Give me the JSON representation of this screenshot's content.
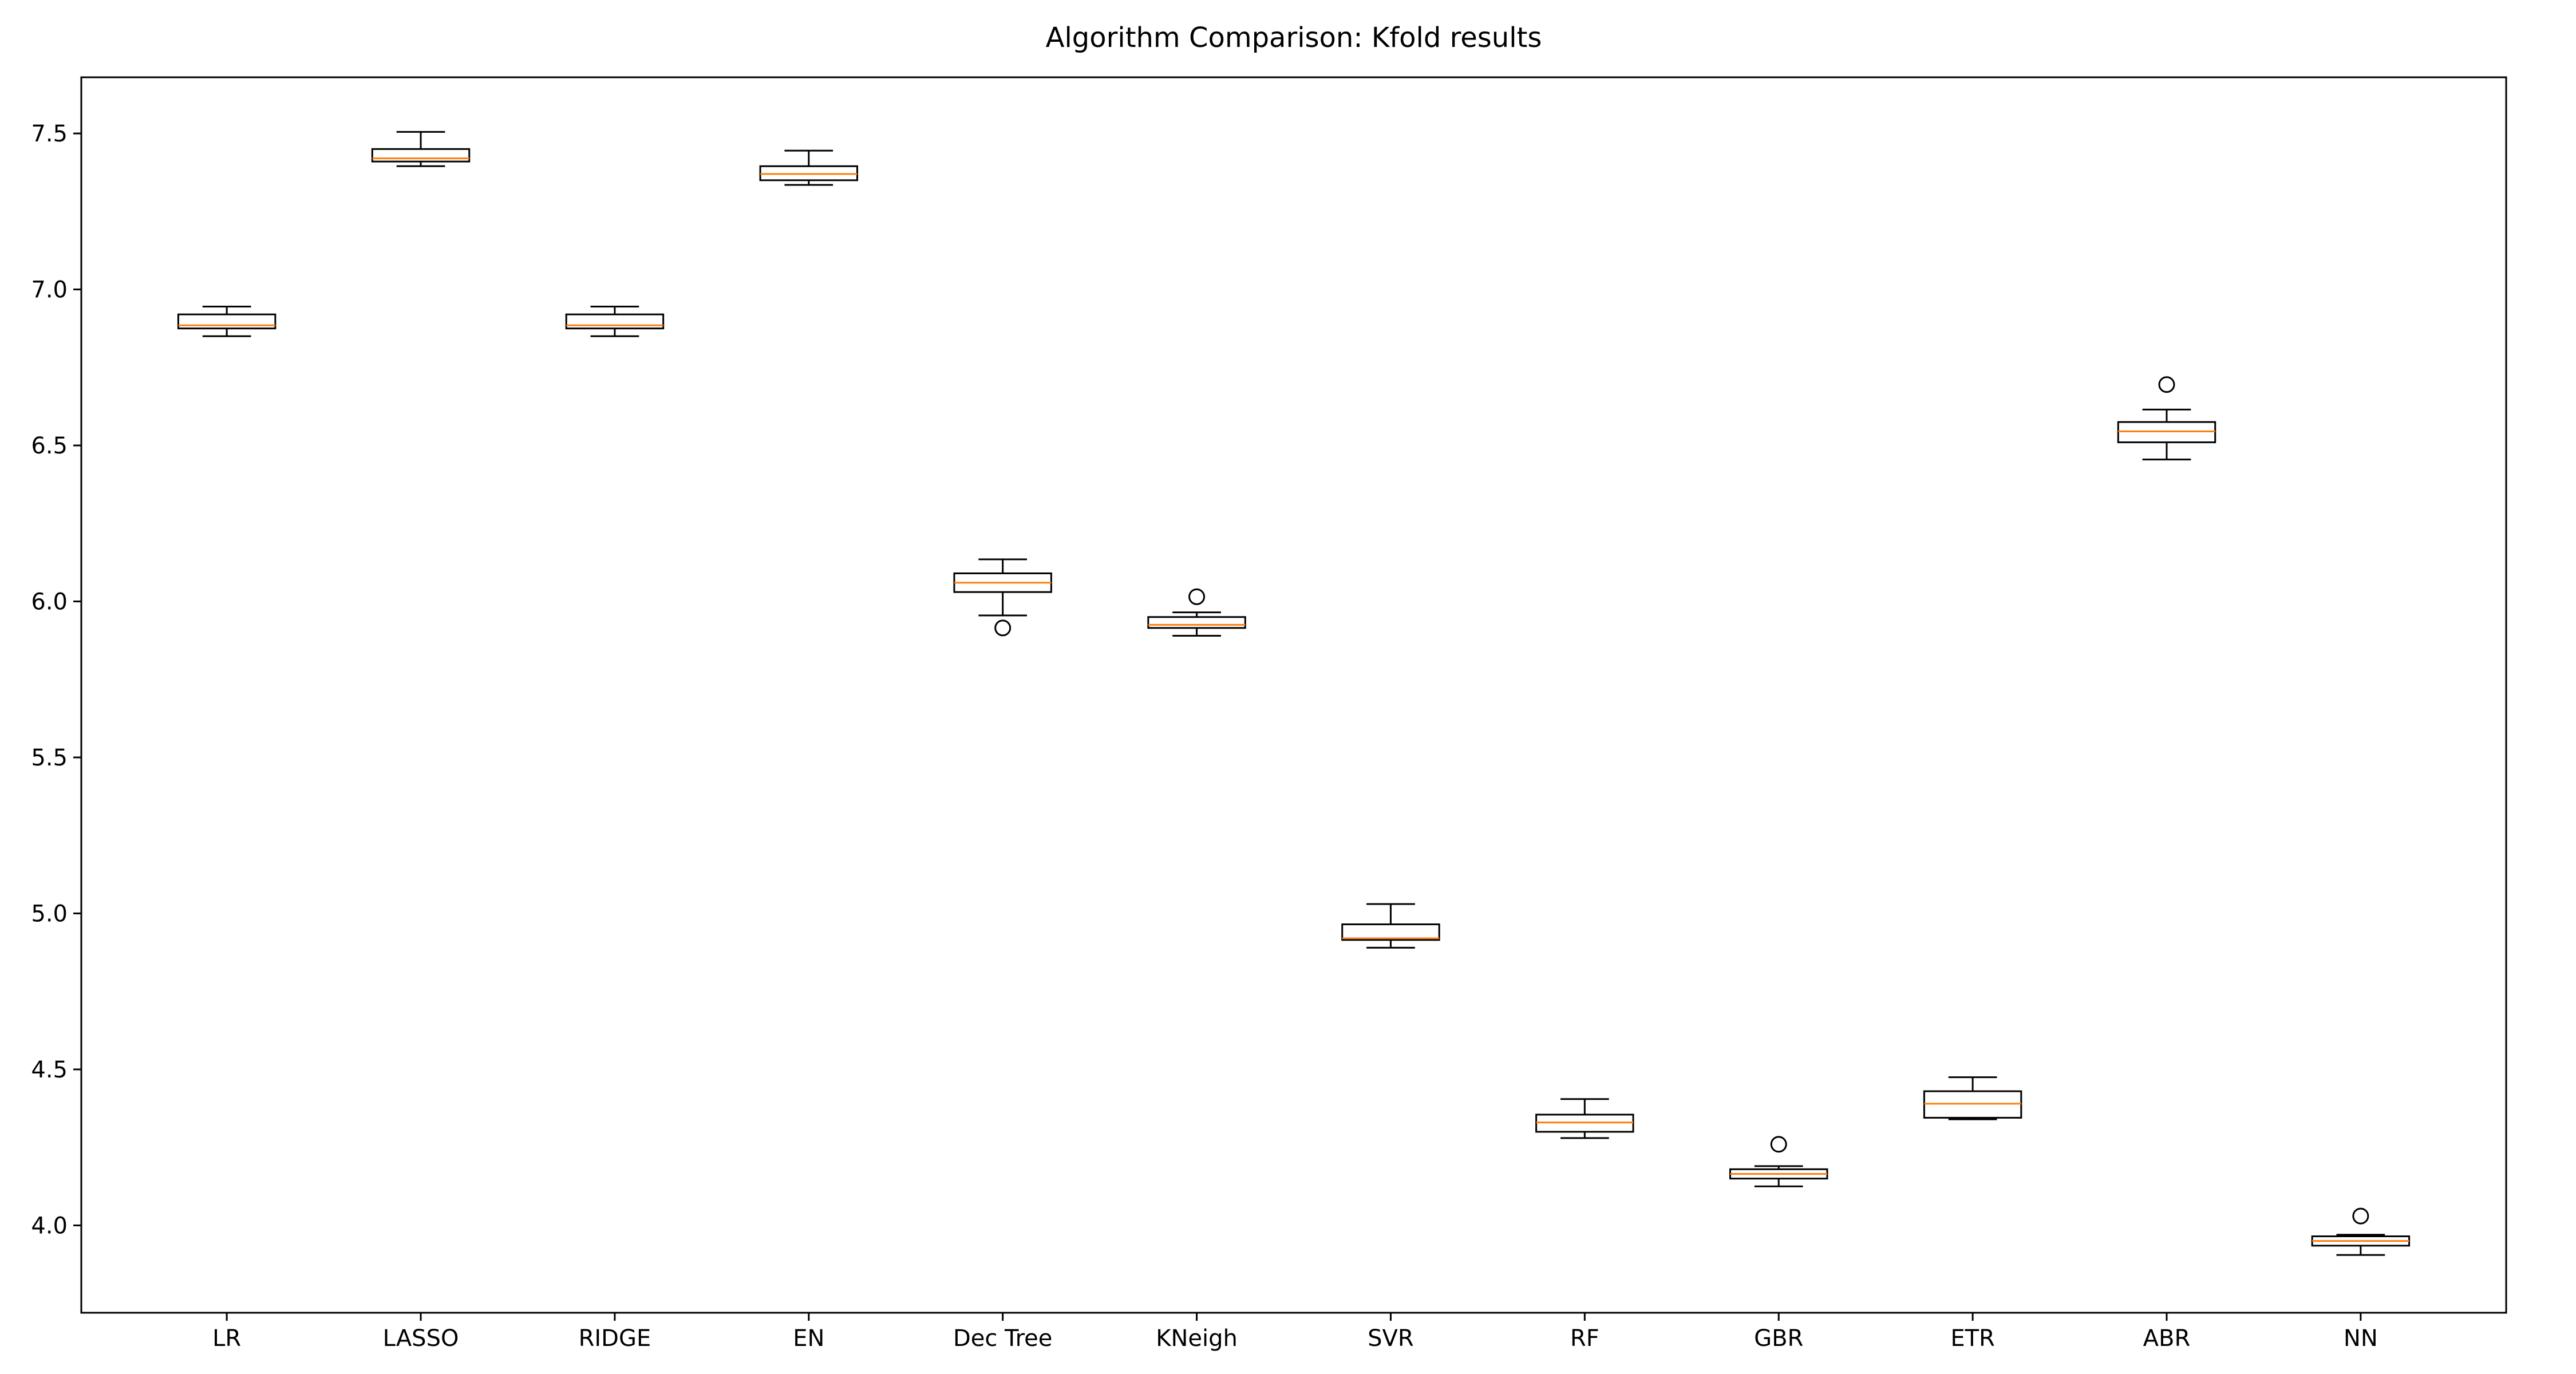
{
  "chart_data": {
    "type": "boxplot",
    "title": "Algorithm Comparison: Kfold results",
    "xlabel": "",
    "ylabel": "",
    "ylim": [
      3.72,
      7.68
    ],
    "yticks": [
      "4.0",
      "4.5",
      "5.0",
      "5.5",
      "6.0",
      "6.5",
      "7.0",
      "7.5"
    ],
    "grid": false,
    "colors": {
      "box": "#000000",
      "median": "#ff7f0e",
      "whisker": "#000000",
      "outlier": "#000000"
    },
    "categories": [
      "LR",
      "LASSO",
      "RIDGE",
      "EN",
      "Dec Tree",
      "KNeigh",
      "SVR",
      "RF",
      "GBR",
      "ETR",
      "ABR",
      "NN"
    ],
    "boxes": [
      {
        "whislo": 6.85,
        "q1": 6.875,
        "med": 6.885,
        "q3": 6.92,
        "whishi": 6.945,
        "fliers": []
      },
      {
        "whislo": 7.395,
        "q1": 7.41,
        "med": 7.42,
        "q3": 7.45,
        "whishi": 7.505,
        "fliers": []
      },
      {
        "whislo": 6.85,
        "q1": 6.875,
        "med": 6.885,
        "q3": 6.92,
        "whishi": 6.945,
        "fliers": []
      },
      {
        "whislo": 7.335,
        "q1": 7.35,
        "med": 7.37,
        "q3": 7.395,
        "whishi": 7.445,
        "fliers": []
      },
      {
        "whislo": 5.955,
        "q1": 6.03,
        "med": 6.06,
        "q3": 6.09,
        "whishi": 6.135,
        "fliers": [
          5.915
        ]
      },
      {
        "whislo": 5.89,
        "q1": 5.915,
        "med": 5.925,
        "q3": 5.95,
        "whishi": 5.965,
        "fliers": [
          6.015
        ]
      },
      {
        "whislo": 4.89,
        "q1": 4.915,
        "med": 4.92,
        "q3": 4.965,
        "whishi": 5.03,
        "fliers": []
      },
      {
        "whislo": 4.28,
        "q1": 4.3,
        "med": 4.33,
        "q3": 4.355,
        "whishi": 4.405,
        "fliers": []
      },
      {
        "whislo": 4.125,
        "q1": 4.15,
        "med": 4.165,
        "q3": 4.18,
        "whishi": 4.19,
        "fliers": [
          4.26
        ]
      },
      {
        "whislo": 4.34,
        "q1": 4.345,
        "med": 4.39,
        "q3": 4.43,
        "whishi": 4.475,
        "fliers": []
      },
      {
        "whislo": 6.455,
        "q1": 6.51,
        "med": 6.545,
        "q3": 6.575,
        "whishi": 6.615,
        "fliers": [
          6.695
        ]
      },
      {
        "whislo": 3.905,
        "q1": 3.935,
        "med": 3.95,
        "q3": 3.965,
        "whishi": 3.97,
        "fliers": [
          4.03
        ]
      }
    ]
  }
}
